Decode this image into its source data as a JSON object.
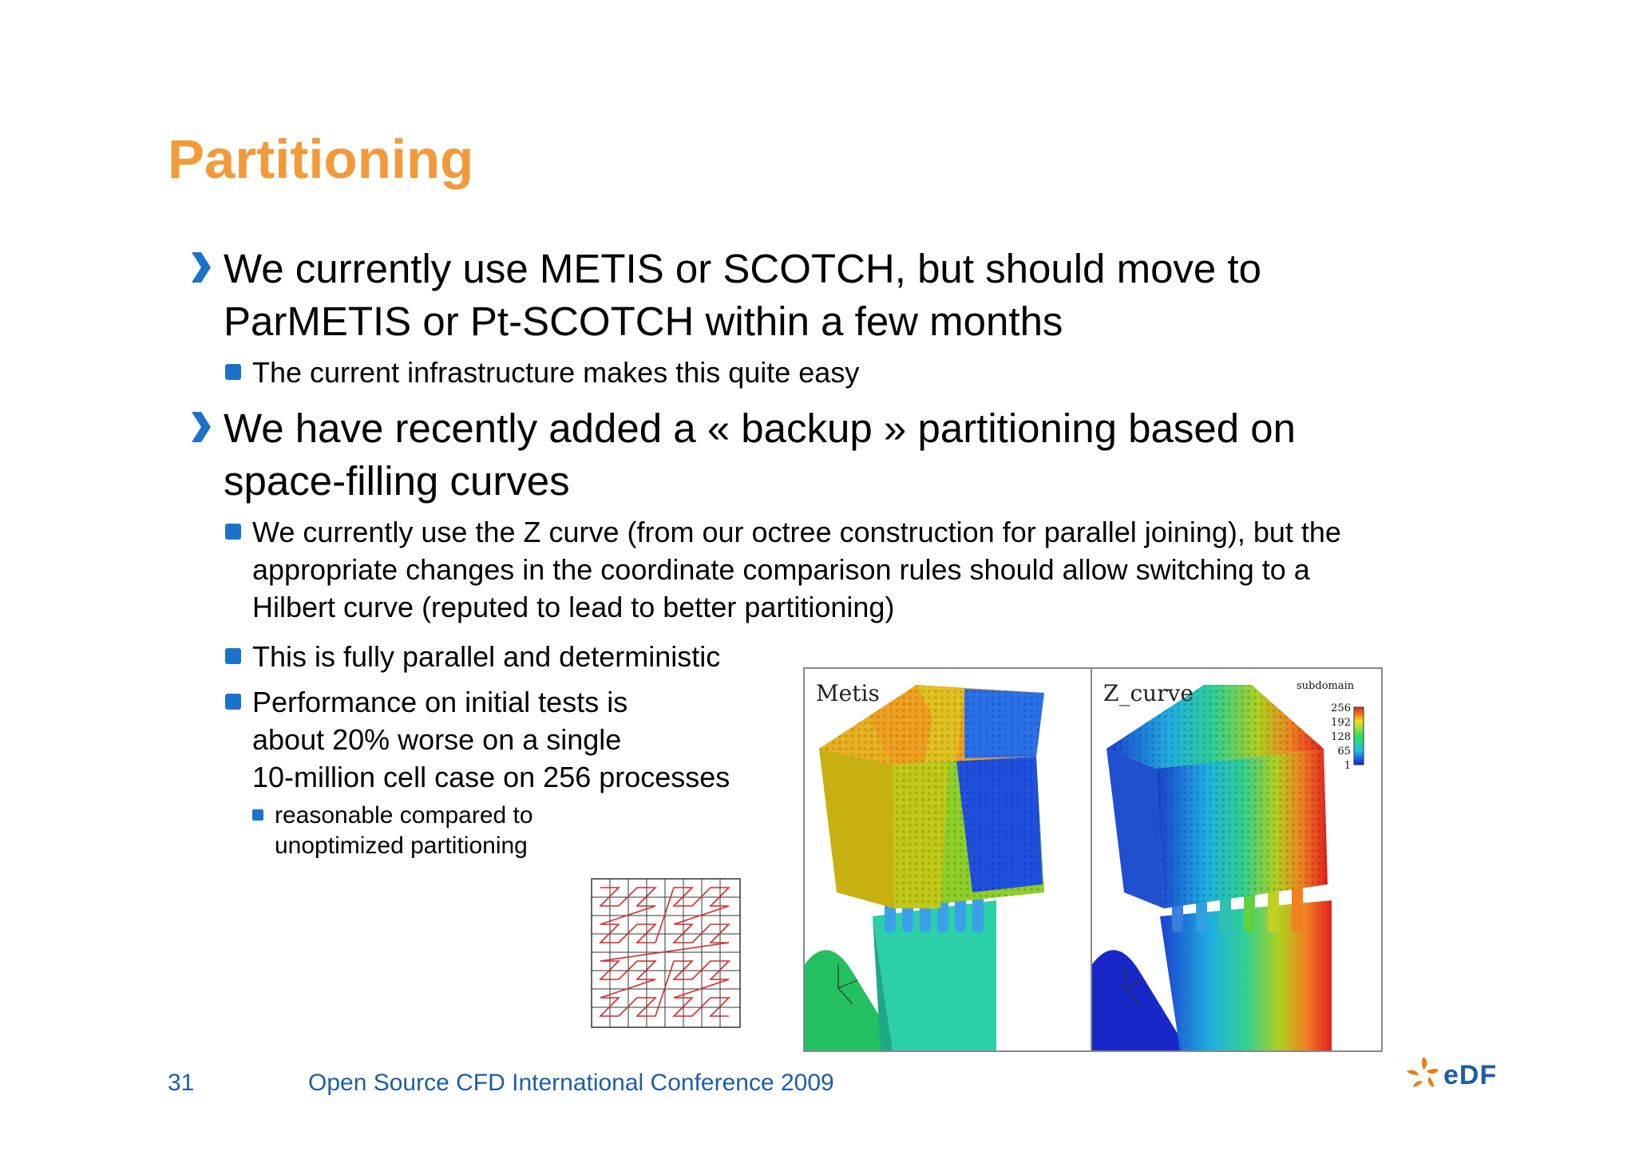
{
  "slide": {
    "title": "Partitioning",
    "bullets": {
      "b1_line1": "We currently use METIS or SCOTCH, but should move to",
      "b1_line2": "ParMETIS or Pt-SCOTCH within a few months",
      "b1_sub": "The current infrastructure makes this quite easy",
      "b2_line1": "We have recently added a « backup » partitioning based on",
      "b2_line2": "space-filling curves",
      "b2_sub1_line1": "We currently use the Z curve (from our octree construction for parallel joining), but the",
      "b2_sub1_line2": "appropriate changes in the coordinate comparison rules should allow switching to a",
      "b2_sub1_line3": "Hilbert curve (reputed to lead to better partitioning)",
      "b2_sub2": "This is fully parallel and deterministic",
      "b2_sub3_line1": "Performance on initial tests is",
      "b2_sub3_line2": "about 20% worse on a single",
      "b2_sub3_line3": "10-million cell case on 256 processes",
      "b2_sub3_sub_line1": "reasonable compared to",
      "b2_sub3_sub_line2": "unoptimized partitioning"
    },
    "figure": {
      "left_label": "Metis",
      "right_label": "Z_curve",
      "legend_title": "subdomain",
      "legend_values": [
        "256",
        "192",
        "128",
        "65",
        "1"
      ]
    },
    "footer": {
      "page_number": "31",
      "conference": "Open Source CFD International Conference 2009",
      "logo_text": "eDF"
    },
    "colors": {
      "title": "#f29a3a",
      "bullet": "#1a73c8",
      "footer": "#1c5ea8"
    }
  }
}
